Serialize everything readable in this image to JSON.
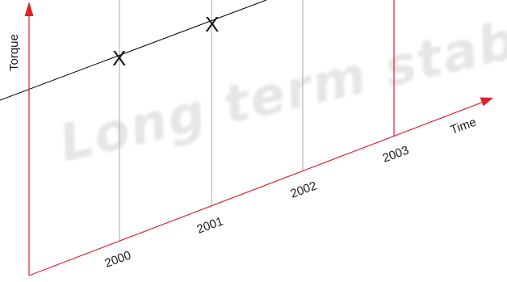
{
  "watermark": {
    "text": "Long term stability",
    "color": "#e6e6e6"
  },
  "axes": {
    "y_title": "Torque",
    "x_title": "Time",
    "color": "#e0202a"
  },
  "years": [
    "2000",
    "2001",
    "2002",
    "2003"
  ],
  "markers": [
    {
      "year": "2000",
      "symbol": "X"
    },
    {
      "year": "2001",
      "symbol": "X"
    }
  ],
  "colors": {
    "gridline": "#aaaaaa",
    "last_gridline": "#e0202a",
    "trend_line": "#000000",
    "text": "#1a1a1a"
  }
}
